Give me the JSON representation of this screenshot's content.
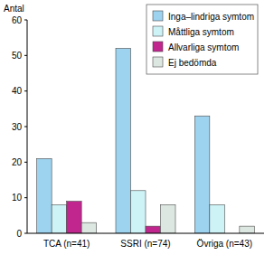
{
  "chart_data": {
    "type": "bar",
    "y_label": "Antal",
    "categories": [
      "TCA (n=41)",
      "SSRI (n=74)",
      "Övriga (n=43)"
    ],
    "series": [
      {
        "name": "Inga–lindriga symtom",
        "color": "#9dd3ef",
        "values": [
          21,
          52,
          33
        ]
      },
      {
        "name": "Måttliga symtom",
        "color": "#cdf3f7",
        "values": [
          8,
          12,
          8
        ]
      },
      {
        "name": "Allvarliga symtom",
        "color": "#c0268e",
        "values": [
          9,
          2,
          0
        ]
      },
      {
        "name": "Ej bedömda",
        "color": "#dde7e2",
        "values": [
          3,
          8,
          2
        ]
      }
    ],
    "ylim": [
      0,
      60
    ],
    "yticks": [
      0,
      10,
      20,
      30,
      40,
      50,
      60
    ],
    "grid": false,
    "legend": "top-right"
  }
}
